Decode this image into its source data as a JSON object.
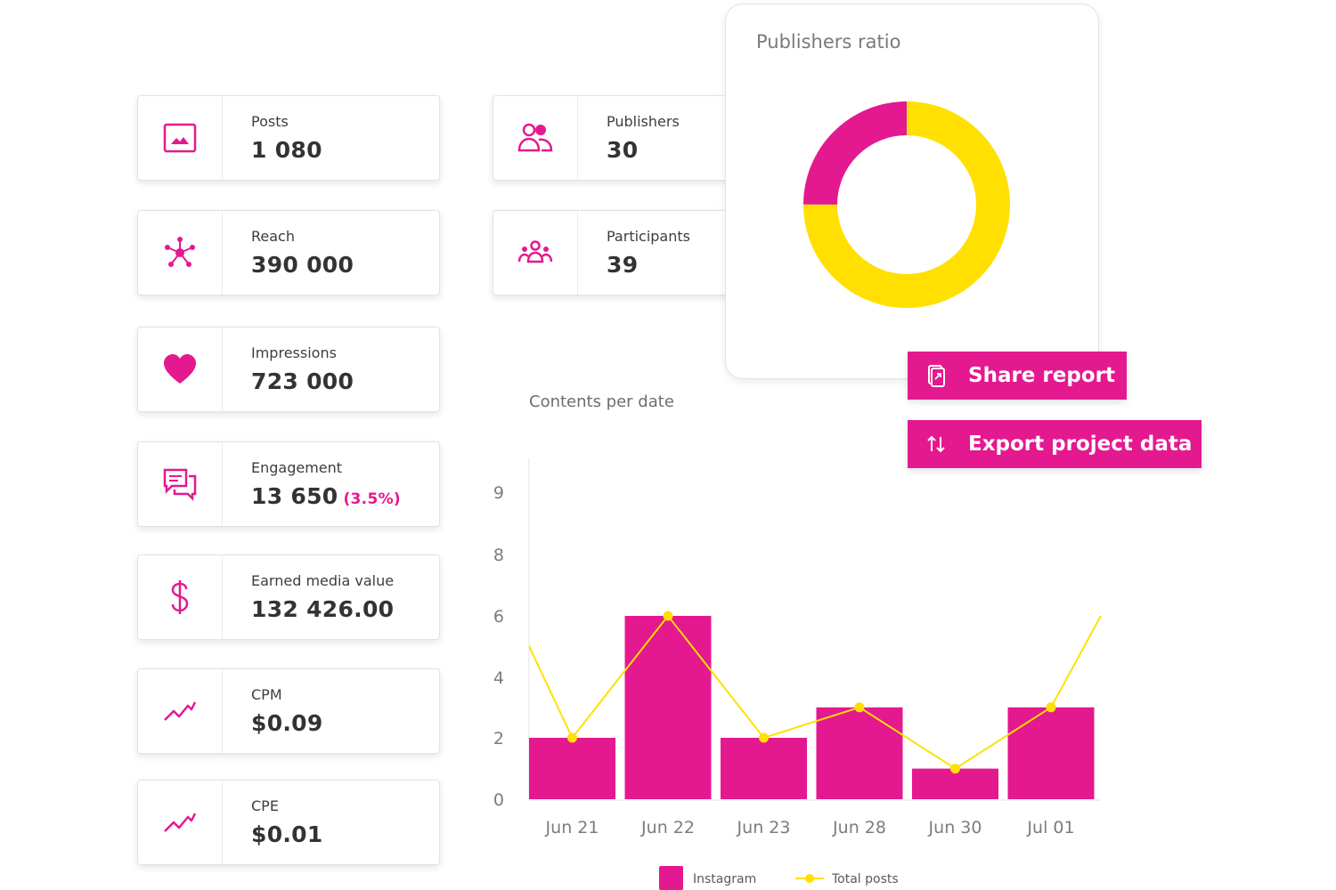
{
  "colors": {
    "accent": "#e4198f",
    "yellow": "#ffe000",
    "text": "#333333",
    "muted": "#7a7a7a"
  },
  "stats_left": [
    {
      "label": "Posts",
      "value": "1 080",
      "icon": "image-icon"
    },
    {
      "label": "Reach",
      "value": "390 000",
      "icon": "network-icon"
    },
    {
      "label": "Impressions",
      "value": "723 000",
      "icon": "heart-icon"
    },
    {
      "label": "Engagement",
      "value": "13 650",
      "percent": "(3.5%)",
      "icon": "chat-bubbles-icon"
    },
    {
      "label": "Earned media value",
      "value": "132 426.00",
      "icon": "dollar-icon"
    },
    {
      "label": "CPM",
      "value": "$0.09",
      "icon": "trend-line-icon"
    },
    {
      "label": "CPE",
      "value": "$0.01",
      "icon": "trend-line-icon"
    }
  ],
  "stats_middle": [
    {
      "label": "Publishers",
      "value": "30",
      "icon": "users-icon"
    },
    {
      "label": "Participants",
      "value": "39",
      "icon": "group-icon"
    }
  ],
  "publishers_ratio": {
    "title": "Publishers ratio",
    "segments": [
      {
        "share": 0.75,
        "color": "#ffe000"
      },
      {
        "share": 0.25,
        "color": "#e4198f"
      }
    ]
  },
  "actions": {
    "share_label": "Share report",
    "export_label": "Export project data"
  },
  "chart_data": {
    "type": "bar",
    "title": "Contents per date",
    "categories": [
      "Jun 21",
      "Jun 22",
      "Jun 23",
      "Jun 28",
      "Jun 30",
      "Jul 01"
    ],
    "y_ticks": [
      0,
      2,
      4,
      6,
      8,
      9
    ],
    "ylim": [
      0,
      9
    ],
    "series": [
      {
        "name": "Instagram",
        "type": "bar",
        "color": "#e4198f",
        "values": [
          2,
          6,
          2,
          3,
          1,
          3
        ]
      },
      {
        "name": "Total posts",
        "type": "line",
        "color": "#ffe000",
        "values": [
          2,
          6,
          2,
          3,
          1,
          3
        ],
        "start_value": 5,
        "end_value": 6
      }
    ],
    "legend": "bottom"
  }
}
